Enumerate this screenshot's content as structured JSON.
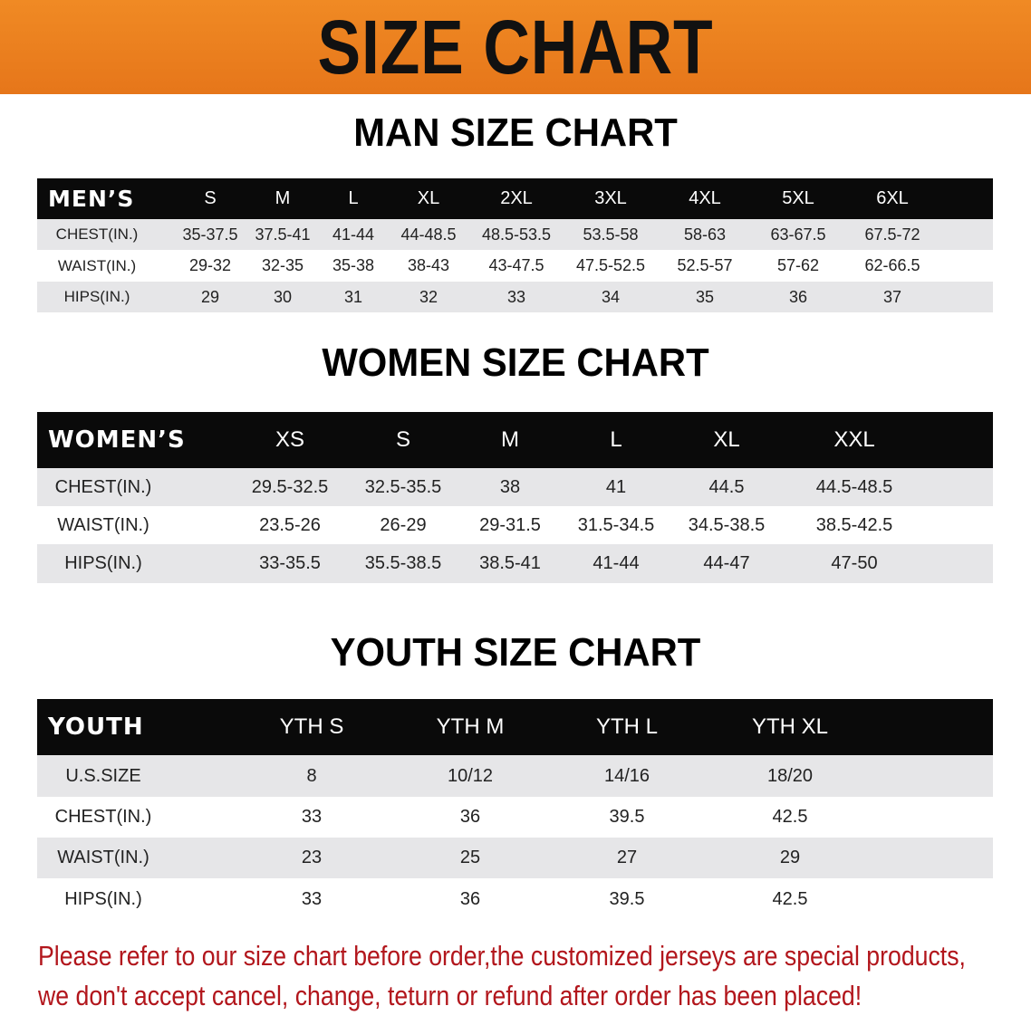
{
  "banner": {
    "title": "SIZE CHART",
    "color": "#ee8120"
  },
  "men": {
    "title": "MAN SIZE CHART",
    "header_label": "MEN’S",
    "sizes": [
      "S",
      "M",
      "L",
      "XL",
      "2XL",
      "3XL",
      "4XL",
      "5XL",
      "6XL"
    ],
    "rows": [
      {
        "label": "CHEST(IN.)",
        "values": [
          "35-37.5",
          "37.5-41",
          "41-44",
          "44-48.5",
          "48.5-53.5",
          "53.5-58",
          "58-63",
          "63-67.5",
          "67.5-72"
        ]
      },
      {
        "label": "WAIST(IN.)",
        "values": [
          "29-32",
          "32-35",
          "35-38",
          "38-43",
          "43-47.5",
          "47.5-52.5",
          "52.5-57",
          "57-62",
          "62-66.5"
        ]
      },
      {
        "label": "HIPS(IN.)",
        "values": [
          "29",
          "30",
          "31",
          "32",
          "33",
          "34",
          "35",
          "36",
          "37"
        ]
      }
    ]
  },
  "women": {
    "title": "WOMEN SIZE CHART",
    "header_label": "WOMEN’S",
    "sizes": [
      "XS",
      "S",
      "M",
      "L",
      "XL",
      "XXL"
    ],
    "rows": [
      {
        "label": "CHEST(IN.)",
        "values": [
          "29.5-32.5",
          "32.5-35.5",
          "38",
          "41",
          "44.5",
          "44.5-48.5"
        ]
      },
      {
        "label": "WAIST(IN.)",
        "values": [
          "23.5-26",
          "26-29",
          "29-31.5",
          "31.5-34.5",
          "34.5-38.5",
          "38.5-42.5"
        ]
      },
      {
        "label": "HIPS(IN.)",
        "values": [
          "33-35.5",
          "35.5-38.5",
          "38.5-41",
          "41-44",
          "44-47",
          "47-50"
        ]
      }
    ]
  },
  "youth": {
    "title": "YOUTH SIZE CHART",
    "header_label": "YOUTH",
    "sizes": [
      "YTH S",
      "YTH M",
      "YTH L",
      "YTH XL"
    ],
    "rows": [
      {
        "label": "U.S.SIZE",
        "values": [
          "8",
          "10/12",
          "14/16",
          "18/20"
        ]
      },
      {
        "label": "CHEST(IN.)",
        "values": [
          "33",
          "36",
          "39.5",
          "42.5"
        ]
      },
      {
        "label": "WAIST(IN.)",
        "values": [
          "23",
          "25",
          "27",
          "29"
        ]
      },
      {
        "label": "HIPS(IN.)",
        "values": [
          "33",
          "36",
          "39.5",
          "42.5"
        ]
      }
    ]
  },
  "notice": {
    "line1": "Please refer to our size chart before order,the customized jerseys are special products,",
    "line2": "we don't accept cancel, change, teturn or refund after order has been placed!",
    "color": "#b2161c"
  }
}
